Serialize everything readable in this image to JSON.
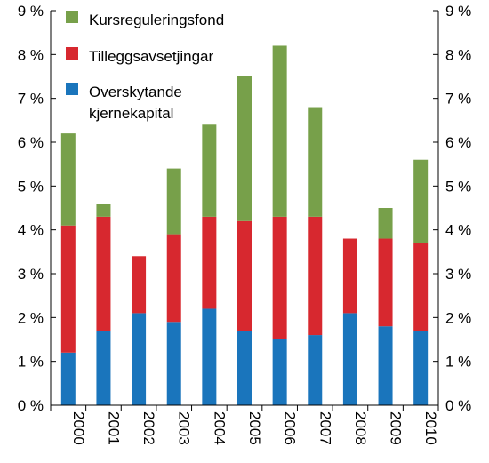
{
  "chart_data": {
    "type": "bar",
    "stacked": true,
    "categories": [
      "2000",
      "2001",
      "2002",
      "2003",
      "2004",
      "2005",
      "2006",
      "2007",
      "2008",
      "2009",
      "2010"
    ],
    "series": [
      {
        "name": "Overskytande kjernekapital",
        "color": "#1a75bc",
        "values": [
          1.2,
          1.7,
          2.1,
          1.9,
          2.2,
          1.7,
          1.5,
          1.6,
          2.1,
          1.8,
          1.7
        ]
      },
      {
        "name": "Tilleggsavsetjingar",
        "color": "#d7282f",
        "values": [
          2.9,
          2.6,
          1.3,
          2.0,
          2.1,
          2.5,
          2.8,
          2.7,
          1.7,
          2.0,
          2.0
        ]
      },
      {
        "name": "Kursreguleringsfond",
        "color": "#77a04a",
        "values": [
          2.1,
          0.3,
          0.0,
          1.5,
          2.1,
          3.3,
          3.9,
          2.5,
          0.0,
          0.7,
          1.9
        ]
      }
    ],
    "legend_order": [
      {
        "name": "Kursreguleringsfond",
        "color": "#77a04a"
      },
      {
        "name": "Tilleggsavsetjingar",
        "color": "#d7282f"
      },
      {
        "name_lines": [
          "Overskytande",
          "kjernekapital"
        ],
        "color": "#1a75bc"
      }
    ],
    "ylim": [
      0,
      9
    ],
    "yticks": [
      0,
      1,
      2,
      3,
      4,
      5,
      6,
      7,
      8,
      9
    ],
    "ytick_labels": [
      "0 %",
      "1 %",
      "2 %",
      "3 %",
      "4 %",
      "5 %",
      "6 %",
      "7 %",
      "8 %",
      "9 %"
    ],
    "dual_y_axis": true,
    "grid": false,
    "legend_position": "top-left",
    "xtick_rotation": "vertical",
    "title": "",
    "xlabel": "",
    "ylabel": ""
  }
}
